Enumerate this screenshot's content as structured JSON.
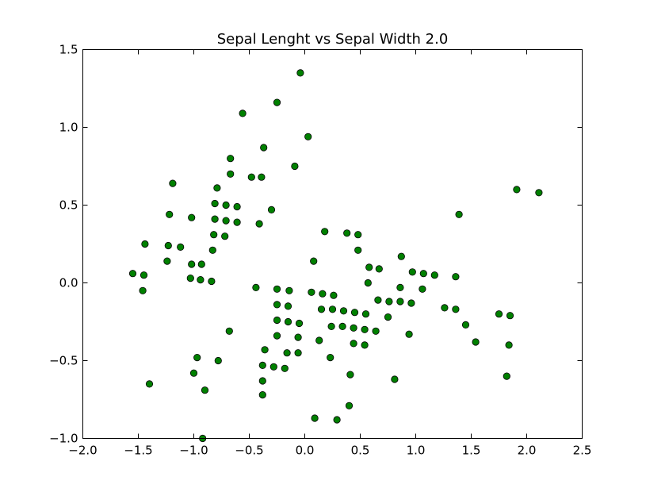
{
  "chart_data": {
    "type": "scatter",
    "title": "Sepal Lenght vs Sepal Width 2.0",
    "xlabel": "",
    "ylabel": "",
    "xlim": [
      -2.0,
      2.5
    ],
    "ylim": [
      -1.0,
      1.5
    ],
    "xticks": [
      -2.0,
      -1.5,
      -1.0,
      -0.5,
      0.0,
      0.5,
      1.0,
      1.5,
      2.0,
      2.5
    ],
    "yticks": [
      -1.0,
      -0.5,
      0.0,
      0.5,
      1.0,
      1.5
    ],
    "xtick_labels": [
      "−2.0",
      "−1.5",
      "−1.0",
      "−0.5",
      "0.0",
      "0.5",
      "1.0",
      "1.5",
      "2.0",
      "2.5"
    ],
    "ytick_labels": [
      "−1.0",
      "−0.5",
      "0.0",
      "0.5",
      "1.0",
      "1.5"
    ],
    "grid": false,
    "legend": "none",
    "marker_color": "#008000",
    "series": [
      {
        "points": [
          [
            -0.04,
            1.35
          ],
          [
            -0.25,
            1.16
          ],
          [
            -0.56,
            1.09
          ],
          [
            0.03,
            0.94
          ],
          [
            -0.37,
            0.87
          ],
          [
            -0.67,
            0.8
          ],
          [
            -0.09,
            0.75
          ],
          [
            -0.67,
            0.7
          ],
          [
            -0.48,
            0.68
          ],
          [
            -0.39,
            0.68
          ],
          [
            -1.19,
            0.64
          ],
          [
            -0.79,
            0.61
          ],
          [
            -0.81,
            0.51
          ],
          [
            -0.71,
            0.5
          ],
          [
            -0.61,
            0.49
          ],
          [
            -0.3,
            0.47
          ],
          [
            -1.22,
            0.44
          ],
          [
            -1.02,
            0.42
          ],
          [
            -0.81,
            0.41
          ],
          [
            -0.71,
            0.4
          ],
          [
            -0.61,
            0.39
          ],
          [
            -0.41,
            0.38
          ],
          [
            -0.82,
            0.31
          ],
          [
            -0.72,
            0.3
          ],
          [
            -1.44,
            0.25
          ],
          [
            -1.23,
            0.24
          ],
          [
            -1.12,
            0.23
          ],
          [
            -0.83,
            0.21
          ],
          [
            -1.24,
            0.14
          ],
          [
            -1.02,
            0.12
          ],
          [
            -0.93,
            0.12
          ],
          [
            -1.55,
            0.06
          ],
          [
            -1.45,
            0.05
          ],
          [
            -1.03,
            0.03
          ],
          [
            -0.94,
            0.02
          ],
          [
            -0.84,
            0.01
          ],
          [
            -1.46,
            -0.05
          ],
          [
            -0.44,
            -0.03
          ],
          [
            -0.25,
            -0.04
          ],
          [
            -0.14,
            -0.05
          ],
          [
            0.06,
            -0.06
          ],
          [
            0.16,
            -0.07
          ],
          [
            0.26,
            -0.08
          ],
          [
            -0.25,
            -0.14
          ],
          [
            -0.15,
            -0.15
          ],
          [
            0.15,
            -0.17
          ],
          [
            0.25,
            -0.17
          ],
          [
            0.35,
            -0.18
          ],
          [
            0.45,
            -0.19
          ],
          [
            0.55,
            -0.2
          ],
          [
            -0.25,
            -0.24
          ],
          [
            -0.15,
            -0.25
          ],
          [
            -0.05,
            -0.26
          ],
          [
            0.24,
            -0.28
          ],
          [
            0.34,
            -0.28
          ],
          [
            0.44,
            -0.29
          ],
          [
            0.54,
            -0.3
          ],
          [
            0.64,
            -0.31
          ],
          [
            -0.68,
            -0.31
          ],
          [
            -0.25,
            -0.34
          ],
          [
            -0.06,
            -0.35
          ],
          [
            0.13,
            -0.37
          ],
          [
            -0.36,
            -0.43
          ],
          [
            -0.16,
            -0.45
          ],
          [
            -0.06,
            -0.45
          ],
          [
            0.23,
            -0.48
          ],
          [
            -0.97,
            -0.48
          ],
          [
            -0.78,
            -0.5
          ],
          [
            -0.38,
            -0.53
          ],
          [
            -0.28,
            -0.54
          ],
          [
            -0.18,
            -0.55
          ],
          [
            -1.0,
            -0.58
          ],
          [
            0.41,
            -0.59
          ],
          [
            -0.38,
            -0.63
          ],
          [
            -1.4,
            -0.65
          ],
          [
            -0.9,
            -0.69
          ],
          [
            -0.38,
            -0.72
          ],
          [
            0.4,
            -0.79
          ],
          [
            0.09,
            -0.87
          ],
          [
            0.29,
            -0.88
          ],
          [
            -0.92,
            -1.0
          ],
          [
            0.18,
            0.33
          ],
          [
            0.38,
            0.32
          ],
          [
            0.48,
            0.31
          ],
          [
            0.48,
            0.21
          ],
          [
            0.08,
            0.14
          ],
          [
            0.58,
            0.1
          ],
          [
            0.67,
            0.09
          ],
          [
            0.87,
            0.17
          ],
          [
            0.97,
            0.07
          ],
          [
            1.07,
            0.06
          ],
          [
            1.17,
            0.05
          ],
          [
            1.36,
            0.04
          ],
          [
            0.57,
            0.0
          ],
          [
            0.86,
            -0.03
          ],
          [
            1.06,
            -0.04
          ],
          [
            0.66,
            -0.11
          ],
          [
            0.76,
            -0.12
          ],
          [
            0.86,
            -0.12
          ],
          [
            0.96,
            -0.13
          ],
          [
            1.26,
            -0.16
          ],
          [
            1.36,
            -0.17
          ],
          [
            1.75,
            -0.2
          ],
          [
            1.85,
            -0.21
          ],
          [
            0.75,
            -0.22
          ],
          [
            1.45,
            -0.27
          ],
          [
            0.94,
            -0.33
          ],
          [
            1.54,
            -0.38
          ],
          [
            1.84,
            -0.4
          ],
          [
            0.54,
            -0.4
          ],
          [
            0.44,
            -0.39
          ],
          [
            1.82,
            -0.6
          ],
          [
            0.81,
            -0.62
          ],
          [
            1.39,
            0.44
          ],
          [
            1.91,
            0.6
          ],
          [
            2.11,
            0.58
          ]
        ]
      }
    ]
  }
}
